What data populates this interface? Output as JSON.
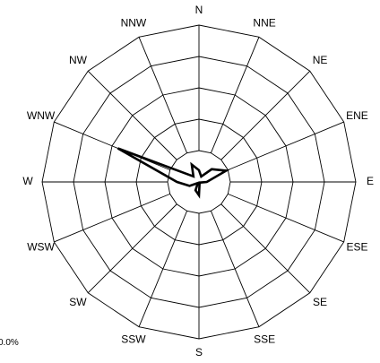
{
  "chart_data": {
    "type": "radar",
    "categories": [
      "N",
      "NNE",
      "NE",
      "ENE",
      "E",
      "ESE",
      "SE",
      "SSE",
      "S",
      "SSW",
      "SW",
      "WSW",
      "W",
      "WNW",
      "NW",
      "NNW"
    ],
    "series": [
      {
        "values": [
          3.0,
          1.5,
          4.6,
          7.5,
          2.0,
          0.4,
          0.4,
          0.4,
          3.4,
          2.3,
          0.4,
          2.6,
          5.6,
          22.4,
          2.0,
          4.8
        ],
        "color": "#000000"
      }
    ],
    "rmax": 40,
    "rings": 5,
    "scale_label": "0.0%",
    "grid": true,
    "colors": {
      "grid": "#000000",
      "series": "#000000"
    }
  }
}
